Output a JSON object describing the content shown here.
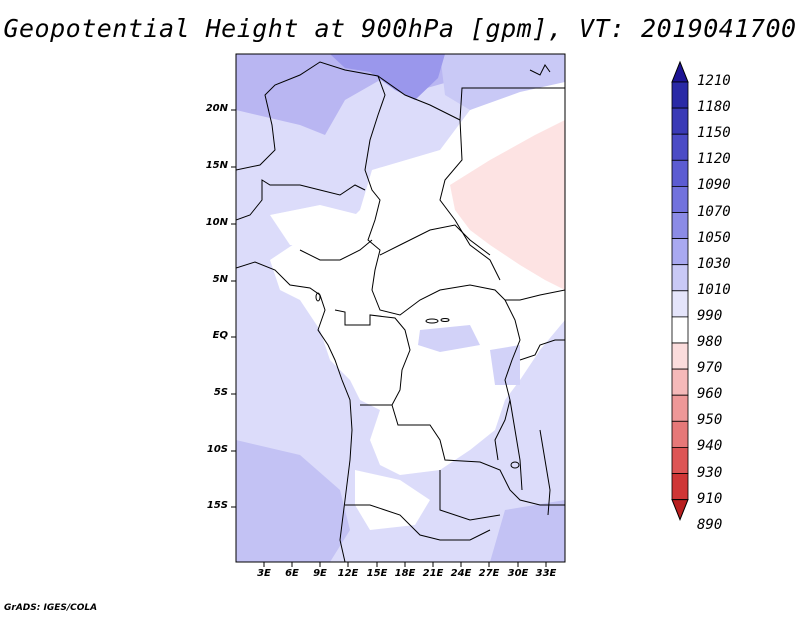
{
  "title": "Geopotential Height at 900hPa [gpm], VT: 2019041700",
  "credit": "GrADS: IGES/COLA",
  "map": {
    "lat_ticks": [
      "20N",
      "15N",
      "10N",
      "5N",
      "EQ",
      "5S",
      "10S",
      "15S"
    ],
    "lon_ticks": [
      "3E",
      "6E",
      "9E",
      "12E",
      "15E",
      "18E",
      "21E",
      "24E",
      "27E",
      "30E",
      "33E"
    ]
  },
  "colorbar": {
    "levels": [
      "1210",
      "1180",
      "1150",
      "1120",
      "1090",
      "1070",
      "1050",
      "1030",
      "1010",
      "990",
      "980",
      "970",
      "960",
      "950",
      "940",
      "930",
      "910",
      "890"
    ],
    "colors": [
      "#1d1494",
      "#2a2aa6",
      "#3a3ab6",
      "#4b4bc6",
      "#5c5cd2",
      "#7272dd",
      "#8b8be6",
      "#a9a9f0",
      "#c9c9f6",
      "#e5e5fb",
      "#ffffff",
      "#fbdcdc",
      "#f5b9b9",
      "#ee9898",
      "#e67878",
      "#dd5555",
      "#cf3636",
      "#b81f1f"
    ]
  }
}
